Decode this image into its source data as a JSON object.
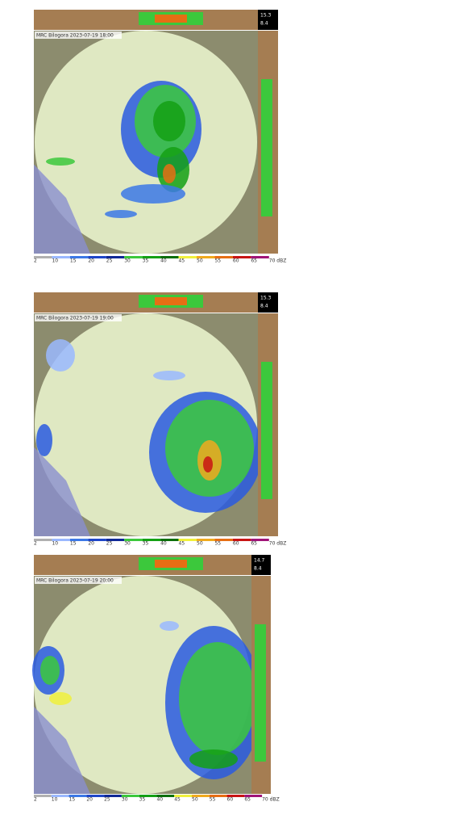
{
  "panels": [
    {
      "title": "MRC Bilogora  2023-07-19  18:00",
      "side_labels": [
        "15.3",
        "8.4"
      ]
    },
    {
      "title": "MRC Bilogora  2023-07-19  19:00",
      "side_labels": [
        "15.3",
        "8.4"
      ]
    },
    {
      "title": "MRC Bilogora  2023-07-19  20:00",
      "side_labels": [
        "14.7",
        "8.4"
      ]
    }
  ],
  "colorbar": {
    "labels": [
      "2",
      "10",
      "15",
      "20",
      "25",
      "30",
      "35",
      "40",
      "45",
      "50",
      "55",
      "60",
      "65",
      "70 dBZ"
    ],
    "colors": [
      "#b0b0b0",
      "#9ab8ff",
      "#3c78e6",
      "#1e46c8",
      "#0f2896",
      "#3cc83c",
      "#14a014",
      "#0a6e0a",
      "#f0f03c",
      "#f0aa1e",
      "#e66e14",
      "#c81414",
      "#a01478"
    ]
  }
}
